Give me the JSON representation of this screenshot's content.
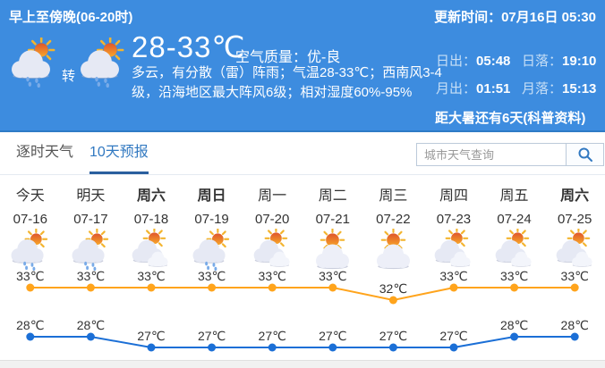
{
  "header": {
    "period_label": "早上至傍晚(06-20时)",
    "transition_label": "转",
    "icons": [
      "shower",
      "shower"
    ],
    "temp_range": "28-33℃",
    "air_quality_label": "空气质量：优-良",
    "description_lines": [
      "多云，有分散（雷）阵雨；气温28-33℃；西南风3-4",
      "级，沿海地区最大阵风6级；相对湿度60%-95%"
    ],
    "update_time": "更新时间：07月16日 05:30",
    "sun_moon": [
      {
        "label": "日出：",
        "value": "05:48"
      },
      {
        "label": "日落：",
        "value": "19:10"
      },
      {
        "label": "月出：",
        "value": "01:51"
      },
      {
        "label": "月落：",
        "value": "15:13"
      }
    ],
    "solar_term_note": "距大暑还有6天(科普资料)",
    "background_color": "#3D8CDF"
  },
  "tabs": [
    {
      "label": "逐时天气",
      "active": false
    },
    {
      "label": "10天预报",
      "active": true
    }
  ],
  "search": {
    "placeholder": "城市天气查询",
    "icon": "search-icon"
  },
  "forecast": {
    "days": [
      {
        "name": "今天",
        "date": "07-16",
        "icon": "shower",
        "bold": false
      },
      {
        "name": "明天",
        "date": "07-17",
        "icon": "shower",
        "bold": false
      },
      {
        "name": "周六",
        "date": "07-18",
        "icon": "cloudy",
        "bold": true
      },
      {
        "name": "周日",
        "date": "07-19",
        "icon": "shower",
        "bold": true
      },
      {
        "name": "周一",
        "date": "07-20",
        "icon": "cloudy",
        "bold": false
      },
      {
        "name": "周二",
        "date": "07-21",
        "icon": "partly-cloudy",
        "bold": false
      },
      {
        "name": "周三",
        "date": "07-22",
        "icon": "partly-cloudy",
        "bold": false
      },
      {
        "name": "周四",
        "date": "07-23",
        "icon": "cloudy",
        "bold": false
      },
      {
        "name": "周五",
        "date": "07-24",
        "icon": "cloudy",
        "bold": false
      },
      {
        "name": "周六",
        "date": "07-25",
        "icon": "cloudy",
        "bold": true
      }
    ]
  },
  "chart_data": {
    "type": "line",
    "categories": [
      "07-16",
      "07-17",
      "07-18",
      "07-19",
      "07-20",
      "07-21",
      "07-22",
      "07-23",
      "07-24",
      "07-25"
    ],
    "series": [
      {
        "name": "high",
        "color": "#FFA41C",
        "unit": "℃",
        "values": [
          33,
          33,
          33,
          33,
          33,
          33,
          32,
          33,
          33,
          33
        ]
      },
      {
        "name": "low",
        "color": "#1B6FD6",
        "unit": "℃",
        "values": [
          28,
          28,
          27,
          27,
          27,
          27,
          27,
          27,
          28,
          28
        ]
      }
    ],
    "legend": "none",
    "grid": false,
    "label_color": "#333333"
  }
}
